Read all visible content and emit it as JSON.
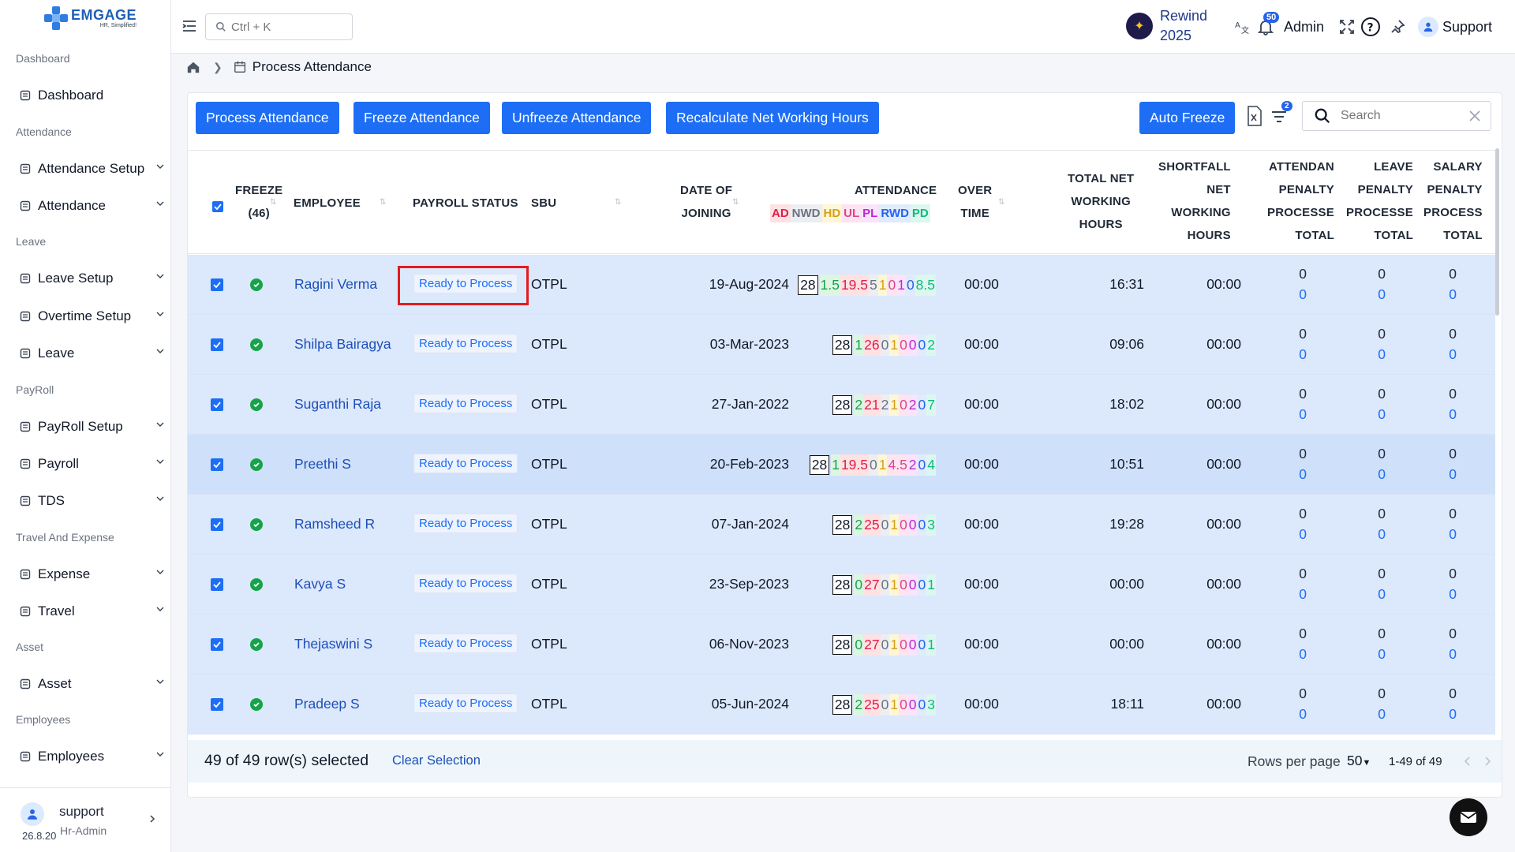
{
  "brand": {
    "name": "EMGAGE",
    "tagline": "HR, Simplified!"
  },
  "sidebar": {
    "sections": [
      {
        "label": "Dashboard",
        "items": [
          {
            "label": "Dashboard",
            "icon": "grid-icon",
            "has_chevron": false
          }
        ]
      },
      {
        "label": "Attendance",
        "items": [
          {
            "label": "Attendance Setup",
            "icon": "calendar-gear-icon",
            "has_chevron": true
          },
          {
            "label": "Attendance",
            "icon": "calendar-icon",
            "has_chevron": true
          }
        ]
      },
      {
        "label": "Leave",
        "items": [
          {
            "label": "Leave Setup",
            "icon": "leave-gear-icon",
            "has_chevron": true
          },
          {
            "label": "Overtime Setup",
            "icon": "clock-gear-icon",
            "has_chevron": true
          },
          {
            "label": "Leave",
            "icon": "leave-icon",
            "has_chevron": true
          }
        ]
      },
      {
        "label": "PayRoll",
        "items": [
          {
            "label": "PayRoll Setup",
            "icon": "payroll-gear-icon",
            "has_chevron": true
          },
          {
            "label": "Payroll",
            "icon": "payroll-icon",
            "has_chevron": true
          },
          {
            "label": "TDS",
            "icon": "tds-icon",
            "has_chevron": true
          }
        ]
      },
      {
        "label": "Travel And Expense",
        "items": [
          {
            "label": "Expense",
            "icon": "wallet-icon",
            "has_chevron": true
          },
          {
            "label": "Travel",
            "icon": "travel-icon",
            "has_chevron": true
          }
        ]
      },
      {
        "label": "Asset",
        "items": [
          {
            "label": "Asset",
            "icon": "laptop-icon",
            "has_chevron": true
          }
        ]
      },
      {
        "label": "Employees",
        "items": [
          {
            "label": "Employees",
            "icon": "employee-icon",
            "has_chevron": true
          }
        ]
      }
    ],
    "user": {
      "name": "support",
      "role": "Hr-Admin",
      "version": "26.8.20"
    }
  },
  "header": {
    "search_placeholder": "Ctrl + K",
    "rewind_line1": "Rewind",
    "rewind_line2": "2025",
    "notification_count": "50",
    "admin_label": "Admin",
    "support_label": "Support"
  },
  "breadcrumb": {
    "current": "Process Attendance"
  },
  "toolbar": {
    "process": "Process Attendance",
    "freeze": "Freeze Attendance",
    "unfreeze": "Unfreeze Attendance",
    "recalc": "Recalculate Net Working Hours",
    "auto_freeze": "Auto Freeze",
    "filter_count": "2",
    "search_placeholder": "Search"
  },
  "table": {
    "headers": {
      "freeze": "FREEZE",
      "freeze_count": "(46)",
      "employee": "EMPLOYEE",
      "payroll_status": "PAYROLL STATUS",
      "sbu": "SBU",
      "doj_1": "DATE OF",
      "doj_2": "JOINING",
      "attendance": "ATTENDANCE",
      "ot_1": "OVER",
      "ot_2": "TIME",
      "tnw_1": "TOTAL NET",
      "tnw_2": "WORKING",
      "tnw_3": "HOURS",
      "sf_1": "SHORTFALL",
      "sf_2": "NET",
      "sf_3": "WORKING",
      "sf_4": "HOURS",
      "ap_1": "ATTENDAN",
      "ap_2": "PENALTY",
      "ap_3": "PROCESSE",
      "ap_4": "TOTAL",
      "lp_1": "LEAVE",
      "lp_2": "PENALTY",
      "lp_3": "PROCESSE",
      "lp_4": "TOTAL",
      "sp_1": "SALARY",
      "sp_2": "PENALTY",
      "sp_3": "PROCESS",
      "sp_4": "TOTAL"
    },
    "attendance_legend": [
      {
        "label": "AD",
        "color": "#e11d48",
        "bg": "#fde2e4"
      },
      {
        "label": "NWD",
        "color": "#6b7280",
        "bg": "#eceef1"
      },
      {
        "label": "HD",
        "color": "#d4a017",
        "bg": "#fdf6d8"
      },
      {
        "label": "UL",
        "color": "#d9468f",
        "bg": "#fde4f0"
      },
      {
        "label": "PL",
        "color": "#c026d3",
        "bg": "#f8e4fb"
      },
      {
        "label": "RWD",
        "color": "#2563eb",
        "bg": "#e0ebfd"
      },
      {
        "label": "PD",
        "color": "#10b981",
        "bg": "#dcf7ee"
      }
    ],
    "rows": [
      {
        "employee": "Ragini Verma",
        "status": "Ready to Process",
        "sbu": "OTPL",
        "doj": "19-Aug-2024",
        "att": [
          "28",
          "1.5",
          "19.5",
          "5",
          "1",
          "0",
          "1",
          "0",
          "8.5"
        ],
        "ot": "00:00",
        "tnw": "16:31",
        "sf": "00:00",
        "ap": [
          "0",
          "0"
        ],
        "lp": [
          "0",
          "0"
        ],
        "sp": [
          "0",
          "0"
        ]
      },
      {
        "employee": "Shilpa Bairagya",
        "status": "Ready to Process",
        "sbu": "OTPL",
        "doj": "03-Mar-2023",
        "att": [
          "28",
          "1",
          "26",
          "0",
          "1",
          "0",
          "0",
          "0",
          "2"
        ],
        "ot": "00:00",
        "tnw": "09:06",
        "sf": "00:00",
        "ap": [
          "0",
          "0"
        ],
        "lp": [
          "0",
          "0"
        ],
        "sp": [
          "0",
          "0"
        ]
      },
      {
        "employee": "Suganthi Raja",
        "status": "Ready to Process",
        "sbu": "OTPL",
        "doj": "27-Jan-2022",
        "att": [
          "28",
          "2",
          "21",
          "2",
          "1",
          "0",
          "2",
          "0",
          "7"
        ],
        "ot": "00:00",
        "tnw": "18:02",
        "sf": "00:00",
        "ap": [
          "0",
          "0"
        ],
        "lp": [
          "0",
          "0"
        ],
        "sp": [
          "0",
          "0"
        ]
      },
      {
        "employee": "Preethi S",
        "status": "Ready to Process",
        "sbu": "OTPL",
        "doj": "20-Feb-2023",
        "att": [
          "28",
          "1",
          "19.5",
          "0",
          "1",
          "4.5",
          "2",
          "0",
          "4"
        ],
        "ot": "00:00",
        "tnw": "10:51",
        "sf": "00:00",
        "ap": [
          "0",
          "0"
        ],
        "lp": [
          "0",
          "0"
        ],
        "sp": [
          "0",
          "0"
        ]
      },
      {
        "employee": "Ramsheed R",
        "status": "Ready to Process",
        "sbu": "OTPL",
        "doj": "07-Jan-2024",
        "att": [
          "28",
          "2",
          "25",
          "0",
          "1",
          "0",
          "0",
          "0",
          "3"
        ],
        "ot": "00:00",
        "tnw": "19:28",
        "sf": "00:00",
        "ap": [
          "0",
          "0"
        ],
        "lp": [
          "0",
          "0"
        ],
        "sp": [
          "0",
          "0"
        ]
      },
      {
        "employee": "Kavya S",
        "status": "Ready to Process",
        "sbu": "OTPL",
        "doj": "23-Sep-2023",
        "att": [
          "28",
          "0",
          "27",
          "0",
          "1",
          "0",
          "0",
          "0",
          "1"
        ],
        "ot": "00:00",
        "tnw": "00:00",
        "sf": "00:00",
        "ap": [
          "0",
          "0"
        ],
        "lp": [
          "0",
          "0"
        ],
        "sp": [
          "0",
          "0"
        ]
      },
      {
        "employee": "Thejaswini S",
        "status": "Ready to Process",
        "sbu": "OTPL",
        "doj": "06-Nov-2023",
        "att": [
          "28",
          "0",
          "27",
          "0",
          "1",
          "0",
          "0",
          "0",
          "1"
        ],
        "ot": "00:00",
        "tnw": "00:00",
        "sf": "00:00",
        "ap": [
          "0",
          "0"
        ],
        "lp": [
          "0",
          "0"
        ],
        "sp": [
          "0",
          "0"
        ]
      },
      {
        "employee": "Pradeep S",
        "status": "Ready to Process",
        "sbu": "OTPL",
        "doj": "05-Jun-2024",
        "att": [
          "28",
          "2",
          "25",
          "0",
          "1",
          "0",
          "0",
          "0",
          "3"
        ],
        "ot": "00:00",
        "tnw": "18:11",
        "sf": "00:00",
        "ap": [
          "0",
          "0"
        ],
        "lp": [
          "0",
          "0"
        ],
        "sp": [
          "0",
          "0"
        ]
      }
    ],
    "att_colors": [
      "#111827",
      "#16a34a",
      "#e11d48",
      "#6b7280",
      "#d4a017",
      "#d9468f",
      "#c026d3",
      "#2563eb",
      "#10b981"
    ],
    "att_bgs": [
      "#ffffff",
      "#def5e3",
      "#fde2e4",
      "#eceef1",
      "#fdf6d8",
      "#fde4f0",
      "#f8e4fb",
      "#e0ebfd",
      "#dcf7ee"
    ]
  },
  "footer": {
    "selected_text": "49 of 49 row(s) selected",
    "clear_selection": "Clear Selection",
    "rows_per_page_label": "Rows per page",
    "rows_per_page_value": "50",
    "range": "1-49 of 49"
  }
}
